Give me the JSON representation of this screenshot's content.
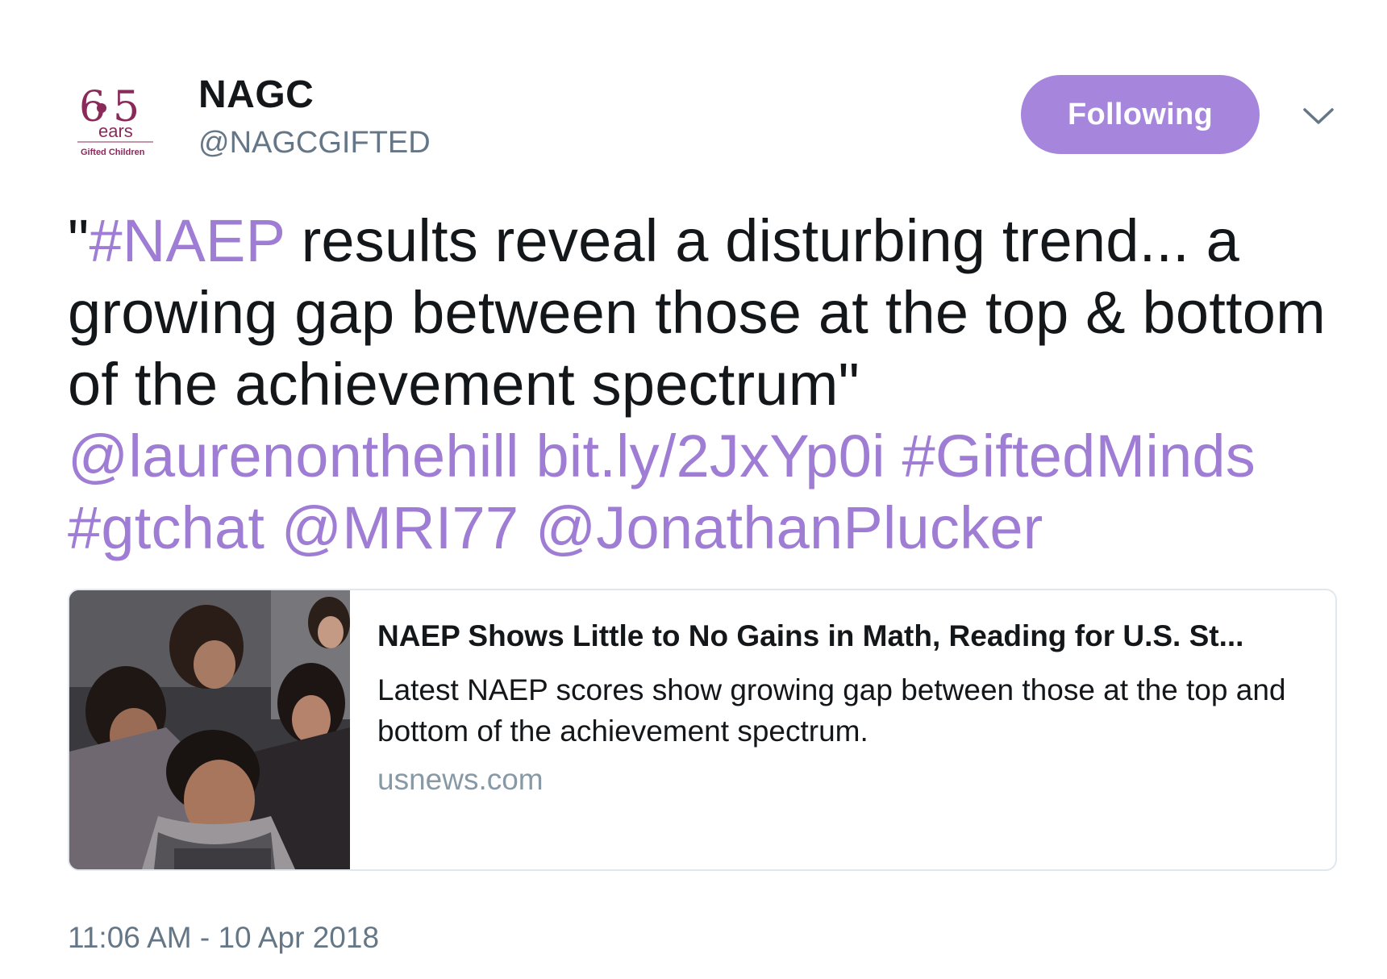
{
  "author": {
    "avatar_icon": "nagc-65-years-logo-icon",
    "avatar_text": "65 Years Gifted Children",
    "name": "NAGC",
    "handle": "@NAGCGIFTED"
  },
  "follow_button": {
    "label": "Following",
    "color": "#a686dc"
  },
  "more_menu": {
    "icon": "chevron-down-icon"
  },
  "tweet": {
    "segments": [
      {
        "text": "\"",
        "link": false
      },
      {
        "text": "#NAEP",
        "link": true
      },
      {
        "text": " results reveal a disturbing trend... a growing gap between those at the top & bottom of the achievement spectrum\" ",
        "link": false
      },
      {
        "text": "@laurenonthehill",
        "link": true
      },
      {
        "text": " ",
        "link": false
      },
      {
        "text": "bit.ly/2JxYp0i",
        "link": true
      },
      {
        "text": " ",
        "link": false
      },
      {
        "text": "#GiftedMinds",
        "link": true
      },
      {
        "text": " ",
        "link": false
      },
      {
        "text": "#gtchat",
        "link": true
      },
      {
        "text": " ",
        "link": false
      },
      {
        "text": "@MRI77",
        "link": true
      },
      {
        "text": " ",
        "link": false
      },
      {
        "text": "@JonathanPlucker",
        "link": true
      }
    ],
    "link_color": "#9f7dd4"
  },
  "card": {
    "image_icon": "students-at-laptops-photo",
    "title": "NAEP Shows Little to No Gains in Math, Reading for U.S. St...",
    "description": "Latest NAEP scores show growing gap between those at the top and bottom of the achievement spectrum.",
    "domain": "usnews.com"
  },
  "timestamp": "11:06 AM - 10 Apr 2018"
}
